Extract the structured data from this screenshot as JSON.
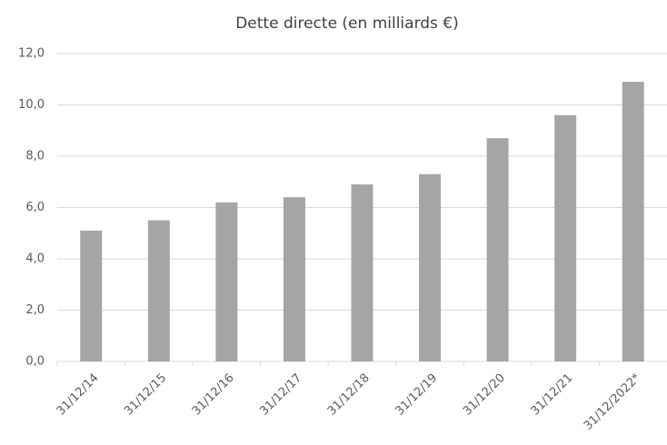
{
  "chart_data": {
    "type": "bar",
    "title": "Dette directe (en milliards €)",
    "categories": [
      "31/12/14",
      "31/12/15",
      "31/12/16",
      "31/12/17",
      "31/12/18",
      "31/12/19",
      "31/12/20",
      "31/12/21",
      "31/12/2022*"
    ],
    "values": [
      5.1,
      5.5,
      6.2,
      6.4,
      6.9,
      7.3,
      8.7,
      9.6,
      10.9
    ],
    "color": "#a5a5a5",
    "ylim": [
      0,
      12
    ],
    "yticks": [
      {
        "value": 0,
        "label": "0,0"
      },
      {
        "value": 2,
        "label": "2,0"
      },
      {
        "value": 4,
        "label": "4,0"
      },
      {
        "value": 6,
        "label": "6,0"
      },
      {
        "value": 8,
        "label": "8,0"
      },
      {
        "value": 10,
        "label": "10,0"
      },
      {
        "value": 12,
        "label": "12,0"
      }
    ],
    "grid": true
  }
}
